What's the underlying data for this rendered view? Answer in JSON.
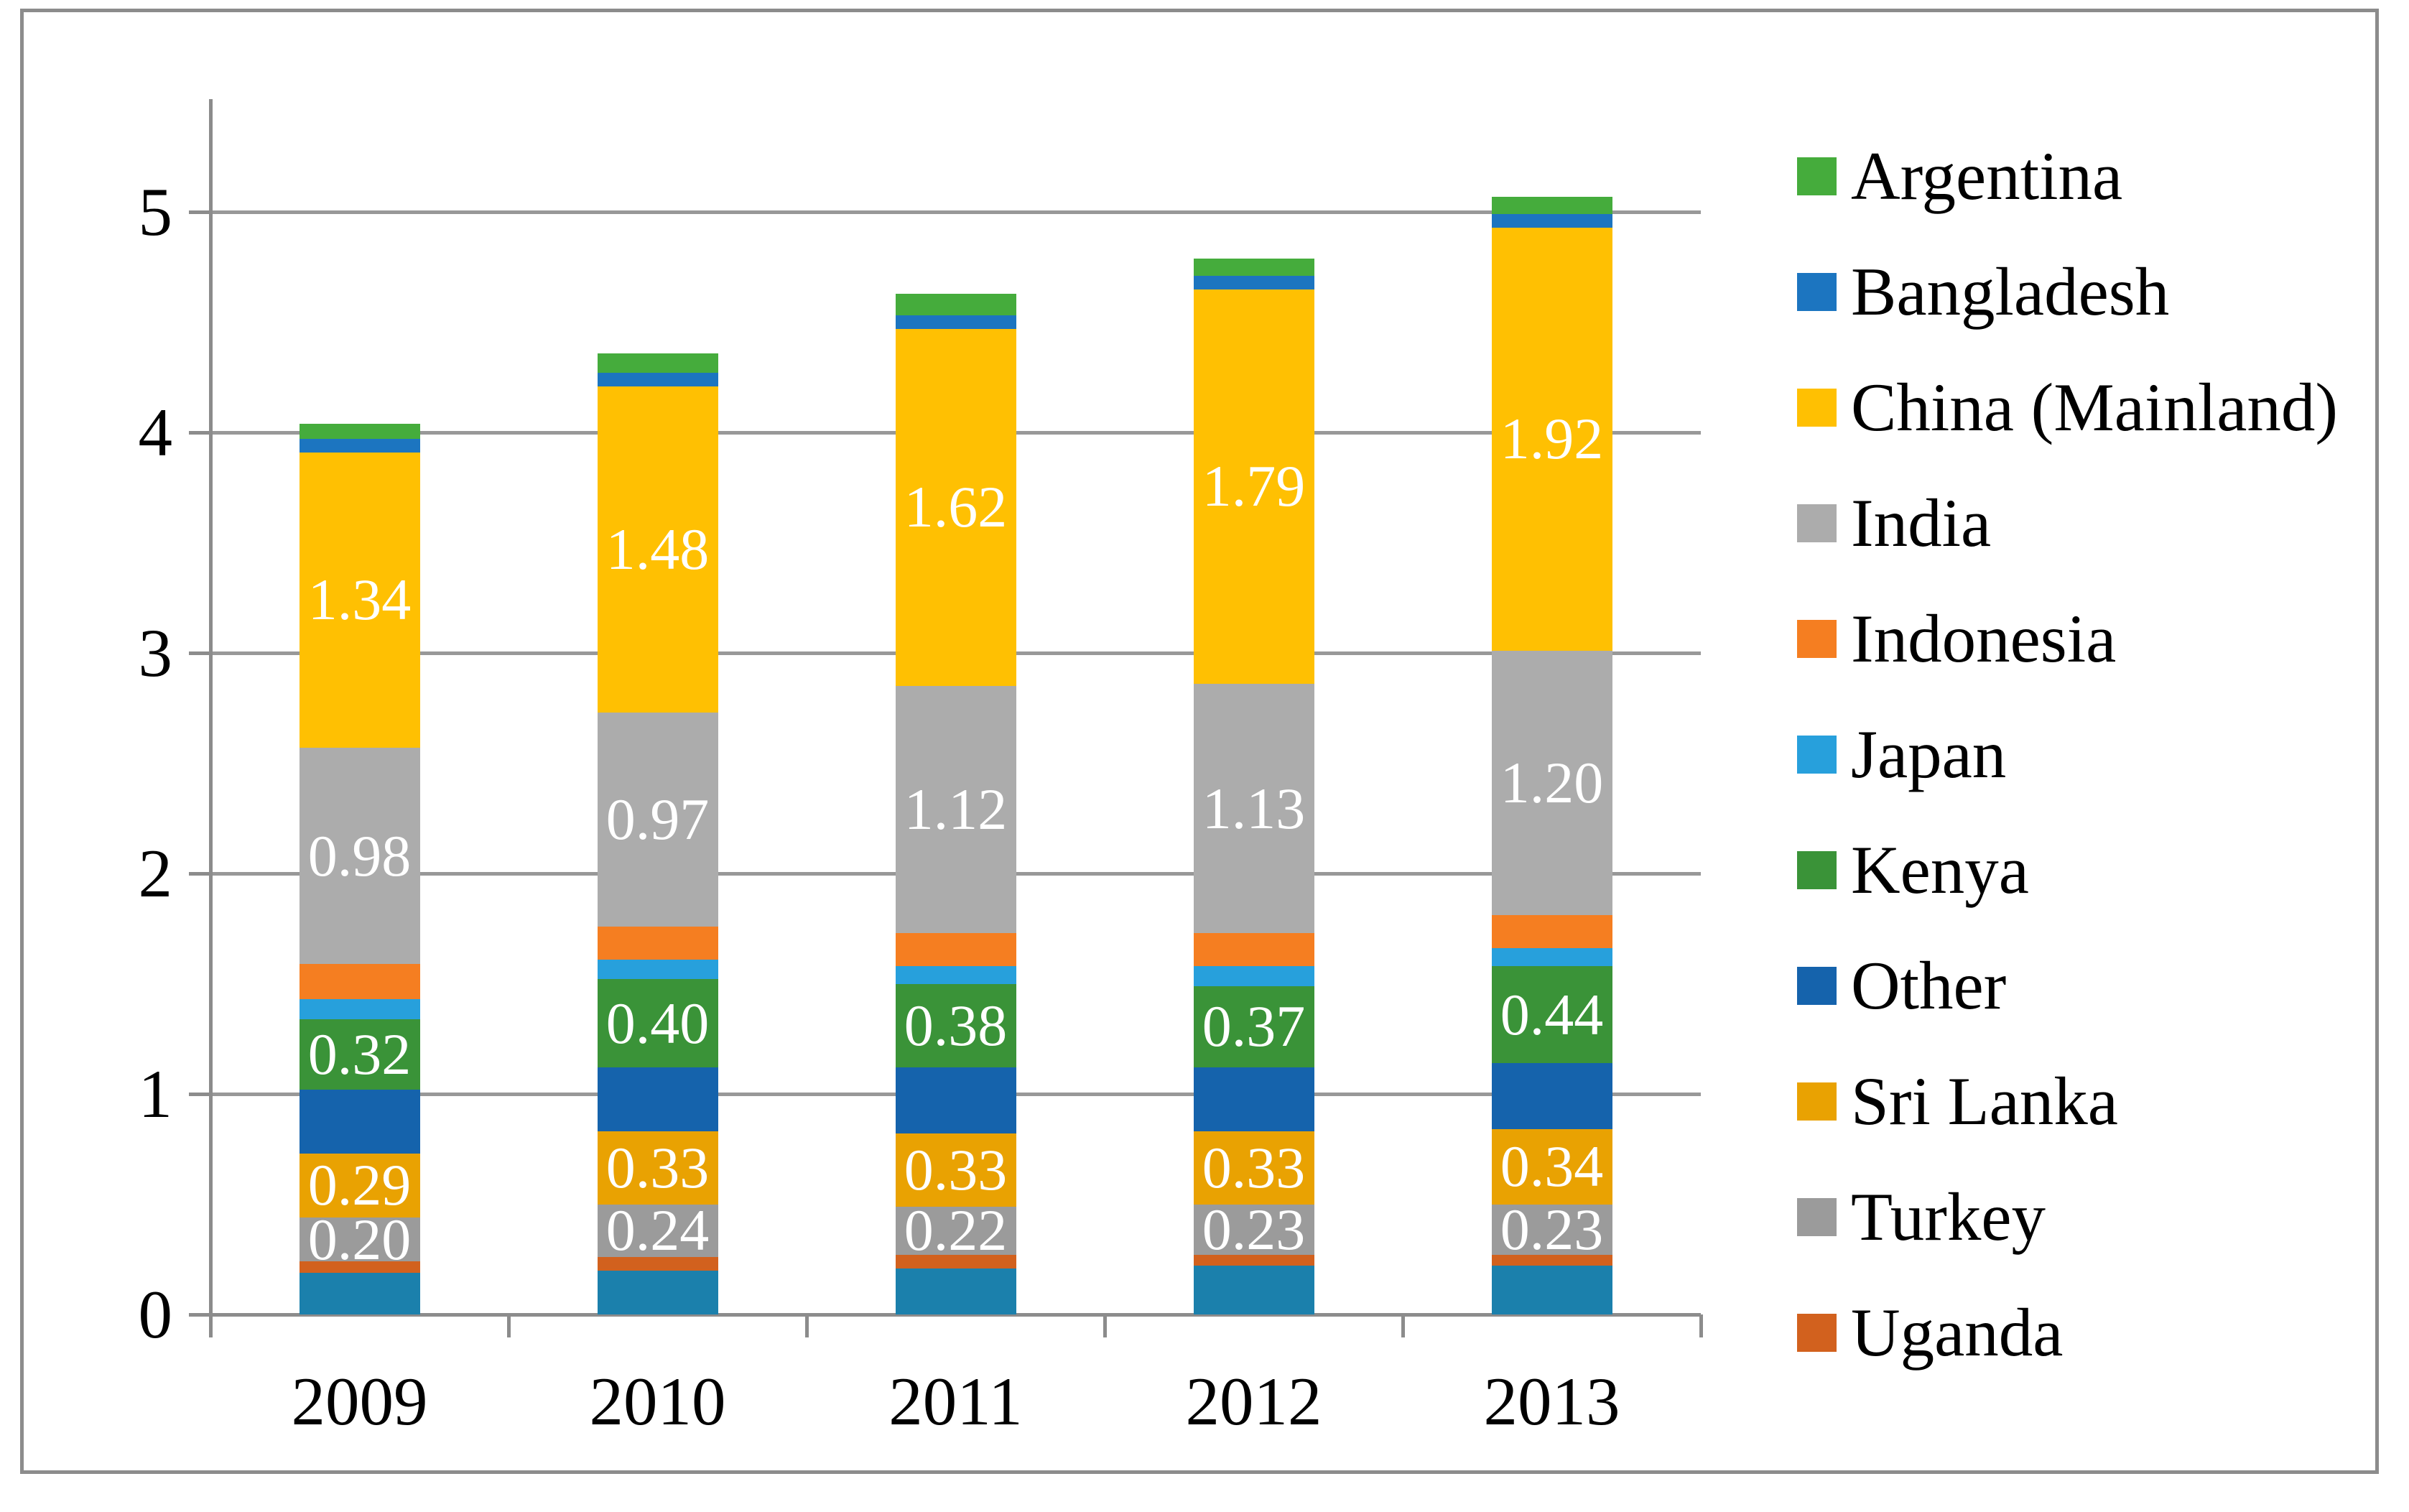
{
  "figure": {
    "background": "#FFFFFF",
    "frame_border_color": "#8C8C8C",
    "axis_color": "#8C8C8C",
    "gridline_color": "#989898"
  },
  "y_axis": {
    "min": 0,
    "max": 5,
    "tick_labels": [
      "0",
      "1",
      "2",
      "3",
      "4",
      "5"
    ]
  },
  "x_axis": {
    "categories": [
      "2009",
      "2010",
      "2011",
      "2012",
      "2013"
    ]
  },
  "legend": {
    "position": "right",
    "items": [
      {
        "label": "Argentina",
        "color": "#45AC3C"
      },
      {
        "label": "Bangladesh",
        "color": "#1C75C0"
      },
      {
        "label": "China (Mainland)",
        "color": "#FFC002"
      },
      {
        "label": "India",
        "color": "#ACACAC"
      },
      {
        "label": "Indonesia",
        "color": "#F57E21"
      },
      {
        "label": "Japan",
        "color": "#27A0DC"
      },
      {
        "label": "Kenya",
        "color": "#3A9338"
      },
      {
        "label": "Other",
        "color": "#1563AC"
      },
      {
        "label": "Sri Lanka",
        "color": "#E9A202"
      },
      {
        "label": "Turkey",
        "color": "#9B9B9B"
      },
      {
        "label": "Uganda",
        "color": "#D2611E"
      }
    ]
  },
  "chart_data": {
    "type": "bar",
    "subtype": "stacked",
    "title": "",
    "xlabel": "",
    "ylabel": "",
    "ylim": [
      0,
      5
    ],
    "grid": true,
    "legend_position": "right",
    "data_label_color": "#FFFFFF",
    "categories": [
      "2009",
      "2010",
      "2011",
      "2012",
      "2013"
    ],
    "stack_order": "bottom_to_top",
    "series": [
      {
        "name": "(unlabeled bottom segment)",
        "color": "#1B80AC",
        "in_legend": false,
        "data_labels": false,
        "values": [
          0.19,
          0.2,
          0.21,
          0.22,
          0.22
        ]
      },
      {
        "name": "Uganda",
        "color": "#D2611E",
        "in_legend": true,
        "data_labels": false,
        "values": [
          0.05,
          0.06,
          0.06,
          0.05,
          0.05
        ]
      },
      {
        "name": "Turkey",
        "color": "#9B9B9B",
        "in_legend": true,
        "data_labels": true,
        "values": [
          0.2,
          0.24,
          0.22,
          0.23,
          0.23
        ]
      },
      {
        "name": "Sri Lanka",
        "color": "#E9A202",
        "in_legend": true,
        "data_labels": true,
        "values": [
          0.29,
          0.33,
          0.33,
          0.33,
          0.34
        ]
      },
      {
        "name": "Other",
        "color": "#1563AC",
        "in_legend": true,
        "data_labels": false,
        "values": [
          0.29,
          0.29,
          0.3,
          0.29,
          0.3
        ]
      },
      {
        "name": "Kenya",
        "color": "#3A9338",
        "in_legend": true,
        "data_labels": true,
        "values": [
          0.32,
          0.4,
          0.38,
          0.37,
          0.44
        ]
      },
      {
        "name": "Japan",
        "color": "#27A0DC",
        "in_legend": true,
        "data_labels": false,
        "values": [
          0.09,
          0.09,
          0.08,
          0.09,
          0.08
        ]
      },
      {
        "name": "Indonesia",
        "color": "#F57E21",
        "in_legend": true,
        "data_labels": false,
        "values": [
          0.16,
          0.15,
          0.15,
          0.15,
          0.15
        ]
      },
      {
        "name": "India",
        "color": "#ACACAC",
        "in_legend": true,
        "data_labels": true,
        "values": [
          0.98,
          0.97,
          1.12,
          1.13,
          1.2
        ]
      },
      {
        "name": "China (Mainland)",
        "color": "#FFC002",
        "in_legend": true,
        "data_labels": true,
        "values": [
          1.34,
          1.48,
          1.62,
          1.79,
          1.92
        ]
      },
      {
        "name": "Bangladesh",
        "color": "#1C75C0",
        "in_legend": true,
        "data_labels": false,
        "values": [
          0.06,
          0.06,
          0.06,
          0.06,
          0.06
        ]
      },
      {
        "name": "Argentina",
        "color": "#45AC3C",
        "in_legend": true,
        "data_labels": false,
        "values": [
          0.07,
          0.09,
          0.1,
          0.08,
          0.08
        ]
      }
    ],
    "data_label_format": "0.00"
  }
}
